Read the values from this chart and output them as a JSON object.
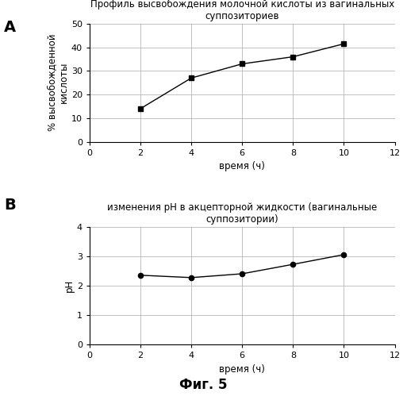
{
  "panel_A": {
    "title": "Профиль высвобождения молочной кислоты из вагинальных\nсуппозиториев",
    "x": [
      2,
      4,
      6,
      8,
      10
    ],
    "y": [
      14,
      27,
      33,
      36,
      41.5
    ],
    "xlabel": "время (ч)",
    "ylabel": "% высвобожденной\nкислоты",
    "xlim": [
      0,
      12
    ],
    "ylim": [
      0,
      50
    ],
    "xticks": [
      0,
      2,
      4,
      6,
      8,
      10,
      12
    ],
    "yticks": [
      0,
      10,
      20,
      30,
      40,
      50
    ],
    "label": "A"
  },
  "panel_B": {
    "title": "изменения pH в акцепторной жидкости (вагинальные\nсуппозитории)",
    "x": [
      2,
      4,
      6,
      8,
      10
    ],
    "y": [
      2.35,
      2.27,
      2.4,
      2.72,
      3.05
    ],
    "xlabel": "время (ч)",
    "ylabel": "pH",
    "xlim": [
      0,
      12
    ],
    "ylim": [
      0,
      4
    ],
    "xticks": [
      0,
      2,
      4,
      6,
      8,
      10,
      12
    ],
    "yticks": [
      0,
      1,
      2,
      3,
      4
    ],
    "label": "B"
  },
  "fig_label": "Фиг. 5",
  "line_color": "#000000",
  "marker_color": "#000000",
  "bg_color": "#ffffff",
  "grid_color": "#aaaaaa",
  "title_fontsize": 8.5,
  "label_fontsize": 8.5,
  "tick_fontsize": 8,
  "panel_label_fontsize": 14,
  "fig_label_fontsize": 12
}
